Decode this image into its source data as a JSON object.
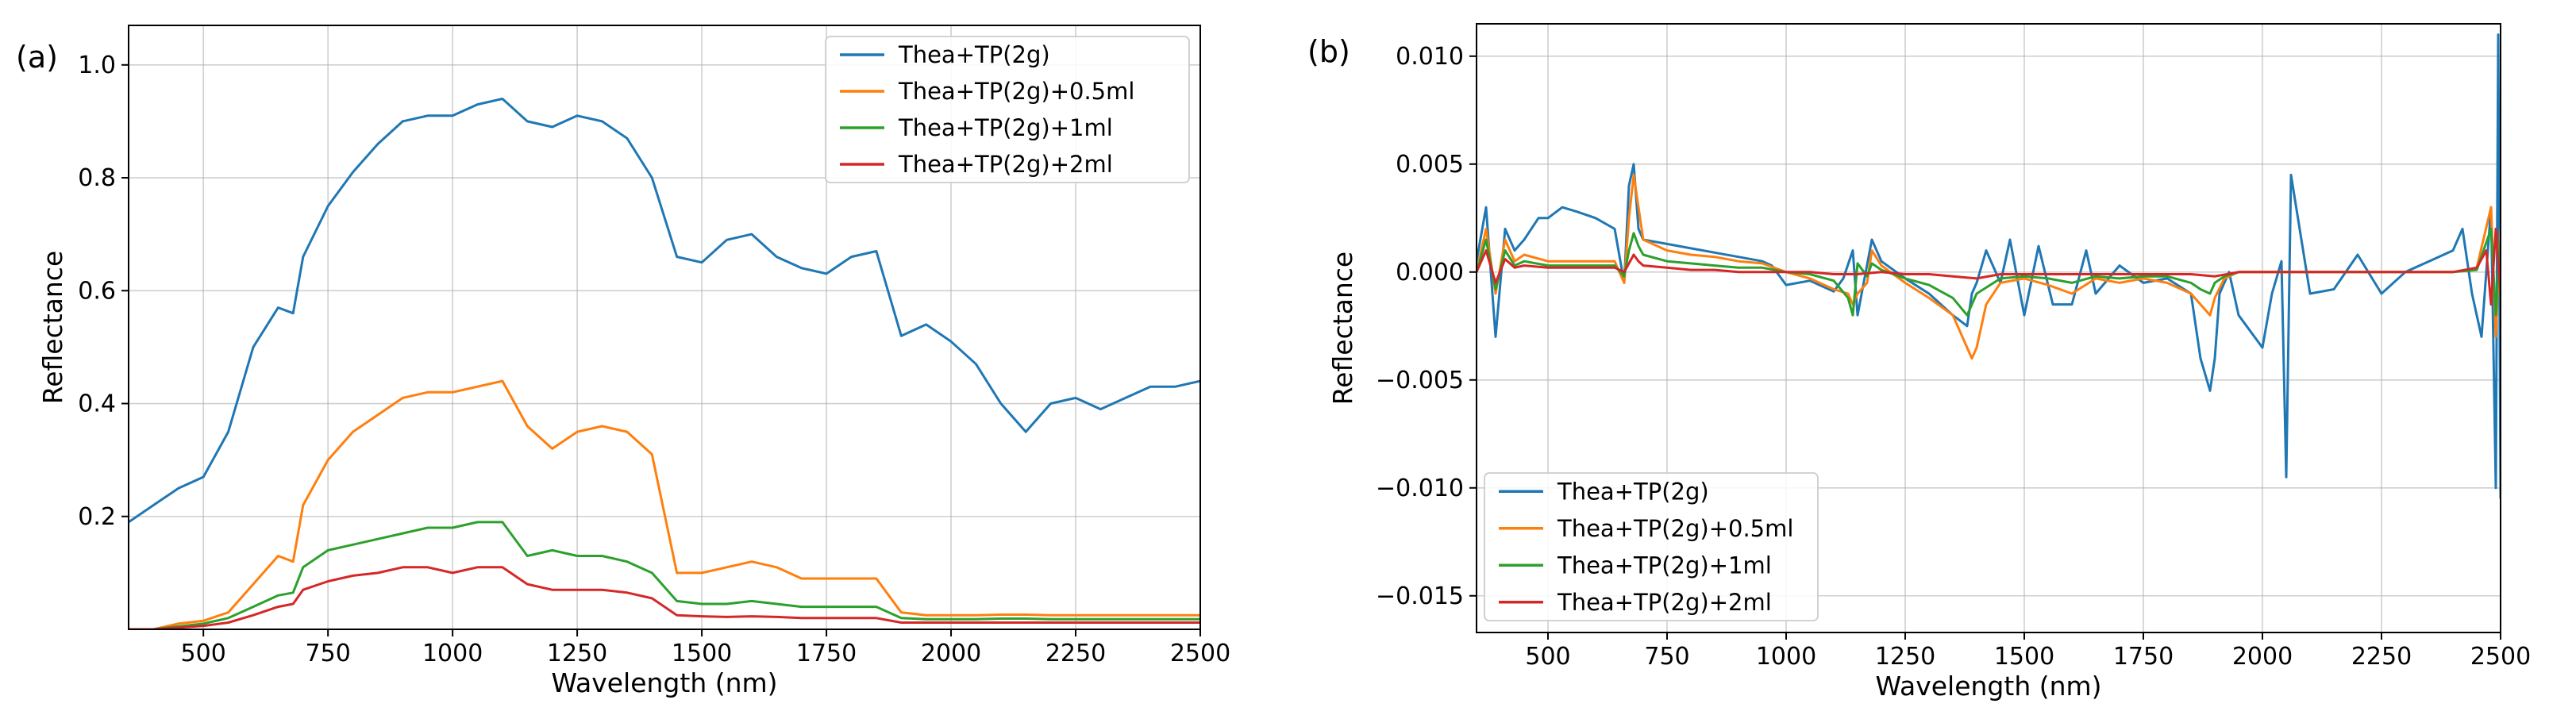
{
  "chart_data": [
    {
      "type": "line",
      "panel_label": "(a)",
      "xlabel": "Wavelength (nm)",
      "ylabel": "Reflectance",
      "xlim": [
        350,
        2500
      ],
      "ylim": [
        0.0,
        1.07
      ],
      "x_ticks": [
        500,
        750,
        1000,
        1250,
        1500,
        1750,
        2000,
        2250,
        2500
      ],
      "x_tick_labels": [
        "500",
        "750",
        "1000",
        "1250",
        "1500",
        "1750",
        "2000",
        "2250",
        "2500"
      ],
      "y_ticks": [
        0.2,
        0.4,
        0.6,
        0.8,
        1.0
      ],
      "y_tick_labels": [
        "0.2",
        "0.4",
        "0.6",
        "0.8",
        "1.0"
      ],
      "grid": true,
      "legend_position": "top-right",
      "series": [
        {
          "name": "Thea+TP(2g)",
          "color": "#1f77b4",
          "x": [
            350,
            400,
            450,
            500,
            550,
            600,
            650,
            680,
            700,
            750,
            800,
            850,
            900,
            950,
            1000,
            1050,
            1100,
            1150,
            1200,
            1250,
            1300,
            1350,
            1400,
            1450,
            1500,
            1550,
            1600,
            1650,
            1700,
            1750,
            1800,
            1850,
            1900,
            1950,
            2000,
            2050,
            2100,
            2150,
            2200,
            2250,
            2300,
            2350,
            2400,
            2450,
            2500
          ],
          "values": [
            0.19,
            0.22,
            0.25,
            0.27,
            0.35,
            0.5,
            0.57,
            0.56,
            0.66,
            0.75,
            0.81,
            0.86,
            0.9,
            0.91,
            0.91,
            0.93,
            0.94,
            0.9,
            0.89,
            0.91,
            0.9,
            0.87,
            0.8,
            0.66,
            0.65,
            0.69,
            0.7,
            0.66,
            0.64,
            0.63,
            0.66,
            0.67,
            0.52,
            0.54,
            0.51,
            0.47,
            0.4,
            0.35,
            0.4,
            0.41,
            0.39,
            0.41,
            0.43,
            0.43,
            0.44
          ]
        },
        {
          "name": "Thea+TP(2g)+0.5ml",
          "color": "#ff7f0e",
          "x": [
            350,
            400,
            450,
            500,
            550,
            600,
            650,
            680,
            700,
            750,
            800,
            850,
            900,
            950,
            1000,
            1050,
            1100,
            1150,
            1200,
            1250,
            1300,
            1350,
            1400,
            1450,
            1500,
            1550,
            1600,
            1650,
            1700,
            1750,
            1800,
            1850,
            1900,
            1950,
            2000,
            2050,
            2100,
            2150,
            2200,
            2250,
            2300,
            2350,
            2400,
            2450,
            2500
          ],
          "values": [
            0.0,
            0.0,
            0.01,
            0.015,
            0.03,
            0.08,
            0.13,
            0.12,
            0.22,
            0.3,
            0.35,
            0.38,
            0.41,
            0.42,
            0.42,
            0.43,
            0.44,
            0.36,
            0.32,
            0.35,
            0.36,
            0.35,
            0.31,
            0.1,
            0.1,
            0.11,
            0.12,
            0.11,
            0.09,
            0.09,
            0.09,
            0.09,
            0.03,
            0.025,
            0.025,
            0.025,
            0.026,
            0.026,
            0.025,
            0.025,
            0.025,
            0.025,
            0.025,
            0.025,
            0.025
          ]
        },
        {
          "name": "Thea+TP(2g)+1ml",
          "color": "#2ca02c",
          "x": [
            350,
            400,
            450,
            500,
            550,
            600,
            650,
            680,
            700,
            750,
            800,
            850,
            900,
            950,
            1000,
            1050,
            1100,
            1150,
            1200,
            1250,
            1300,
            1350,
            1400,
            1450,
            1500,
            1550,
            1600,
            1650,
            1700,
            1750,
            1800,
            1850,
            1900,
            1950,
            2000,
            2050,
            2100,
            2150,
            2200,
            2250,
            2300,
            2350,
            2400,
            2450,
            2500
          ],
          "values": [
            0.0,
            0.0,
            0.005,
            0.01,
            0.02,
            0.04,
            0.06,
            0.065,
            0.11,
            0.14,
            0.15,
            0.16,
            0.17,
            0.18,
            0.18,
            0.19,
            0.19,
            0.13,
            0.14,
            0.13,
            0.13,
            0.12,
            0.1,
            0.05,
            0.045,
            0.045,
            0.05,
            0.045,
            0.04,
            0.04,
            0.04,
            0.04,
            0.02,
            0.018,
            0.018,
            0.018,
            0.019,
            0.019,
            0.018,
            0.018,
            0.018,
            0.018,
            0.018,
            0.018,
            0.018
          ]
        },
        {
          "name": "Thea+TP(2g)+2ml",
          "color": "#d62728",
          "x": [
            350,
            400,
            450,
            500,
            550,
            600,
            650,
            680,
            700,
            750,
            800,
            850,
            900,
            950,
            1000,
            1050,
            1100,
            1150,
            1200,
            1250,
            1300,
            1350,
            1400,
            1450,
            1500,
            1550,
            1600,
            1650,
            1700,
            1750,
            1800,
            1850,
            1900,
            1950,
            2000,
            2050,
            2100,
            2150,
            2200,
            2250,
            2300,
            2350,
            2400,
            2450,
            2500
          ],
          "values": [
            0.0,
            0.0,
            0.003,
            0.006,
            0.012,
            0.025,
            0.04,
            0.045,
            0.07,
            0.085,
            0.095,
            0.1,
            0.11,
            0.11,
            0.1,
            0.11,
            0.11,
            0.08,
            0.07,
            0.07,
            0.07,
            0.065,
            0.055,
            0.025,
            0.023,
            0.022,
            0.023,
            0.022,
            0.02,
            0.02,
            0.02,
            0.02,
            0.012,
            0.012,
            0.012,
            0.012,
            0.012,
            0.012,
            0.012,
            0.012,
            0.012,
            0.012,
            0.012,
            0.012,
            0.012
          ]
        }
      ]
    },
    {
      "type": "line",
      "panel_label": "(b)",
      "xlabel": "Wavelength (nm)",
      "ylabel": "Reflectance",
      "xlim": [
        350,
        2500
      ],
      "ylim": [
        -0.0167,
        0.0115
      ],
      "x_ticks": [
        500,
        750,
        1000,
        1250,
        1500,
        1750,
        2000,
        2250,
        2500
      ],
      "x_tick_labels": [
        "500",
        "750",
        "1000",
        "1250",
        "1500",
        "1750",
        "2000",
        "2250",
        "2500"
      ],
      "y_ticks": [
        -0.015,
        -0.01,
        -0.005,
        0.0,
        0.005,
        0.01
      ],
      "y_tick_labels": [
        "−0.015",
        "−0.010",
        "−0.005",
        "0.000",
        "0.005",
        "0.010"
      ],
      "grid": true,
      "legend_position": "bottom-left",
      "series": [
        {
          "name": "Thea+TP(2g)",
          "color": "#1f77b4",
          "x": [
            350,
            370,
            390,
            410,
            430,
            450,
            480,
            500,
            530,
            560,
            600,
            640,
            660,
            670,
            680,
            690,
            700,
            750,
            800,
            850,
            900,
            950,
            970,
            1000,
            1050,
            1100,
            1120,
            1140,
            1150,
            1180,
            1200,
            1250,
            1300,
            1350,
            1380,
            1390,
            1400,
            1420,
            1450,
            1470,
            1500,
            1530,
            1560,
            1600,
            1630,
            1650,
            1700,
            1750,
            1800,
            1850,
            1870,
            1890,
            1900,
            1910,
            1930,
            1950,
            2000,
            2020,
            2040,
            2050,
            2060,
            2100,
            2150,
            2200,
            2250,
            2300,
            2350,
            2400,
            2420,
            2440,
            2460,
            2480,
            2490,
            2495,
            2500
          ],
          "values": [
            0.0005,
            0.003,
            -0.003,
            0.002,
            0.001,
            0.0015,
            0.0025,
            0.0025,
            0.003,
            0.0028,
            0.0025,
            0.002,
            -0.0005,
            0.004,
            0.005,
            0.002,
            0.0015,
            0.0013,
            0.0011,
            0.0009,
            0.0007,
            0.0005,
            0.0003,
            -0.0006,
            -0.0004,
            -0.0009,
            -0.0003,
            0.001,
            -0.002,
            0.0015,
            0.0005,
            -0.0003,
            -0.001,
            -0.002,
            -0.0025,
            -0.001,
            -0.0005,
            0.001,
            -0.0005,
            0.0015,
            -0.002,
            0.0012,
            -0.0015,
            -0.0015,
            0.001,
            -0.001,
            0.0003,
            -0.0005,
            -0.0003,
            -0.001,
            -0.004,
            -0.0055,
            -0.004,
            -0.001,
            0.0,
            -0.002,
            -0.0035,
            -0.001,
            0.0005,
            -0.0095,
            0.0045,
            -0.001,
            -0.0008,
            0.0008,
            -0.001,
            0.0,
            0.0005,
            0.001,
            0.002,
            -0.001,
            -0.003,
            0.003,
            -0.01,
            0.011,
            -0.0105
          ]
        },
        {
          "name": "Thea+TP(2g)+0.5ml",
          "color": "#ff7f0e",
          "x": [
            350,
            370,
            390,
            410,
            430,
            450,
            500,
            550,
            600,
            640,
            660,
            670,
            680,
            690,
            700,
            750,
            800,
            850,
            900,
            950,
            1000,
            1050,
            1100,
            1130,
            1140,
            1150,
            1170,
            1180,
            1200,
            1250,
            1300,
            1350,
            1380,
            1390,
            1400,
            1420,
            1450,
            1500,
            1550,
            1600,
            1650,
            1700,
            1750,
            1800,
            1850,
            1870,
            1890,
            1900,
            1920,
            1950,
            2000,
            2050,
            2100,
            2150,
            2200,
            2250,
            2300,
            2350,
            2400,
            2450,
            2480,
            2490,
            2500
          ],
          "values": [
            0.0,
            0.002,
            -0.001,
            0.0015,
            0.0005,
            0.0008,
            0.0005,
            0.0005,
            0.0005,
            0.0005,
            -0.0005,
            0.0025,
            0.0045,
            0.003,
            0.0015,
            0.001,
            0.0008,
            0.0007,
            0.0005,
            0.0004,
            0.0,
            -0.0003,
            -0.0008,
            -0.001,
            -0.0015,
            -0.001,
            -0.0005,
            0.001,
            0.0003,
            -0.0005,
            -0.0012,
            -0.002,
            -0.0035,
            -0.004,
            -0.0035,
            -0.0015,
            -0.0005,
            -0.0003,
            -0.0006,
            -0.001,
            -0.0003,
            -0.0005,
            -0.0003,
            -0.0005,
            -0.001,
            -0.0015,
            -0.002,
            -0.0012,
            -0.0003,
            0.0,
            0.0,
            0.0,
            0.0,
            0.0,
            0.0,
            0.0,
            0.0,
            0.0,
            0.0,
            0.0002,
            0.003,
            -0.003,
            0.002
          ]
        },
        {
          "name": "Thea+TP(2g)+1ml",
          "color": "#2ca02c",
          "x": [
            350,
            370,
            390,
            410,
            430,
            450,
            500,
            550,
            600,
            640,
            660,
            670,
            680,
            690,
            700,
            750,
            800,
            850,
            900,
            950,
            1000,
            1050,
            1100,
            1130,
            1140,
            1150,
            1170,
            1180,
            1200,
            1250,
            1300,
            1350,
            1380,
            1390,
            1400,
            1450,
            1500,
            1550,
            1600,
            1650,
            1700,
            1750,
            1800,
            1850,
            1870,
            1890,
            1900,
            1920,
            1950,
            2000,
            2050,
            2100,
            2150,
            2200,
            2250,
            2300,
            2350,
            2400,
            2450,
            2480,
            2490,
            2500
          ],
          "values": [
            0.0,
            0.0015,
            -0.0008,
            0.001,
            0.0003,
            0.0005,
            0.0003,
            0.0003,
            0.0003,
            0.0003,
            -0.0002,
            0.001,
            0.0018,
            0.0012,
            0.0008,
            0.0005,
            0.0004,
            0.0003,
            0.0002,
            0.0002,
            0.0,
            -0.0001,
            -0.0004,
            -0.0012,
            -0.002,
            0.0004,
            -0.0002,
            0.0004,
            0.0001,
            -0.0003,
            -0.0006,
            -0.0012,
            -0.002,
            -0.0015,
            -0.001,
            -0.0003,
            -0.0002,
            -0.0003,
            -0.0005,
            -0.0002,
            -0.0003,
            -0.0002,
            -0.0002,
            -0.0005,
            -0.0008,
            -0.001,
            -0.0005,
            -0.0002,
            0.0,
            0.0,
            0.0,
            0.0,
            0.0,
            0.0,
            0.0,
            0.0,
            0.0,
            0.0,
            0.0001,
            0.002,
            -0.002,
            0.0015
          ]
        },
        {
          "name": "Thea+TP(2g)+2ml",
          "color": "#d62728",
          "x": [
            350,
            370,
            390,
            410,
            430,
            450,
            500,
            550,
            600,
            640,
            660,
            670,
            680,
            690,
            700,
            750,
            800,
            850,
            900,
            950,
            1000,
            1050,
            1100,
            1150,
            1200,
            1250,
            1300,
            1350,
            1400,
            1450,
            1500,
            1550,
            1600,
            1650,
            1700,
            1750,
            1800,
            1850,
            1900,
            1950,
            2000,
            2050,
            2100,
            2150,
            2200,
            2250,
            2300,
            2350,
            2400,
            2450,
            2470,
            2480,
            2490,
            2500
          ],
          "values": [
            0.0,
            0.001,
            -0.0005,
            0.0006,
            0.0002,
            0.0003,
            0.0002,
            0.0002,
            0.0002,
            0.0002,
            0.0,
            0.0004,
            0.0008,
            0.0005,
            0.0003,
            0.0002,
            0.0001,
            0.0001,
            0.0,
            0.0,
            0.0,
            0.0,
            -0.0001,
            -0.0001,
            0.0,
            -0.0001,
            -0.0001,
            -0.0002,
            -0.0003,
            -0.0001,
            -0.0001,
            -0.0001,
            -0.0001,
            -0.0001,
            -0.0001,
            -0.0001,
            -0.0001,
            -0.0001,
            -0.0002,
            0.0,
            0.0,
            0.0,
            0.0,
            0.0,
            0.0,
            0.0,
            0.0,
            0.0,
            0.0,
            0.0002,
            0.001,
            -0.0015,
            0.002,
            -0.001
          ]
        }
      ]
    }
  ]
}
